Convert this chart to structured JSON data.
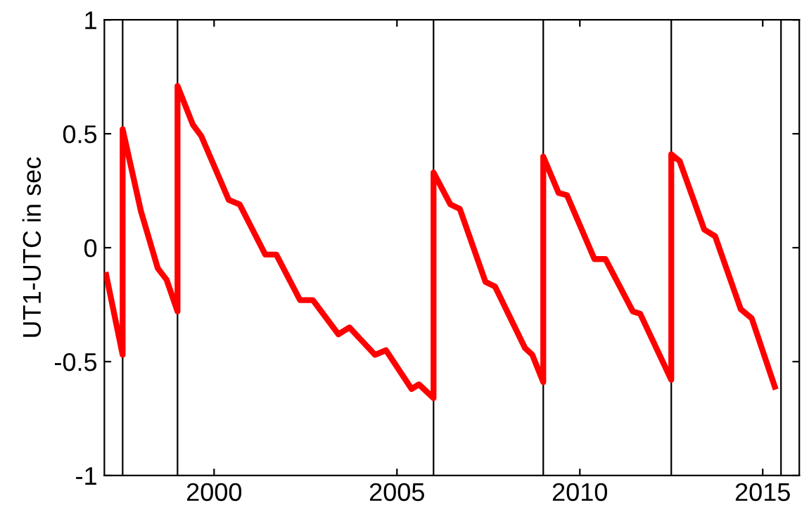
{
  "chart_data": {
    "type": "line",
    "ylabel": "UT1-UTC in sec",
    "series": [
      {
        "color": "#ff0000",
        "x": [
          1997.05,
          1997.5,
          1997.5,
          1998.0,
          1998.46,
          1998.7,
          1999.0,
          1999.0,
          1999.42,
          1999.65,
          2000.4,
          2000.7,
          2001.4,
          2001.7,
          2002.35,
          2002.7,
          2003.4,
          2003.7,
          2004.4,
          2004.7,
          2005.4,
          2005.6,
          2006.0,
          2006.0,
          2006.46,
          2006.72,
          2007.42,
          2007.68,
          2008.5,
          2008.7,
          2009.0,
          2009.0,
          2009.42,
          2009.65,
          2010.4,
          2010.7,
          2011.45,
          2011.65,
          2012.5,
          2012.5,
          2012.73,
          2013.4,
          2013.7,
          2014.4,
          2014.7,
          2015.33
        ],
        "values": [
          -0.12,
          -0.47,
          0.52,
          0.16,
          -0.09,
          -0.14,
          -0.28,
          0.71,
          0.54,
          0.49,
          0.21,
          0.19,
          -0.03,
          -0.03,
          -0.23,
          -0.23,
          -0.38,
          -0.35,
          -0.47,
          -0.45,
          -0.62,
          -0.6,
          -0.66,
          0.33,
          0.19,
          0.17,
          -0.15,
          -0.17,
          -0.44,
          -0.47,
          -0.59,
          0.4,
          0.24,
          0.23,
          -0.05,
          -0.05,
          -0.28,
          -0.29,
          -0.58,
          0.41,
          0.38,
          0.08,
          0.05,
          -0.27,
          -0.31,
          -0.61
        ]
      }
    ],
    "ref_lines": [
      {
        "axis": "x",
        "value": 1997.5,
        "color": "#000000"
      },
      {
        "axis": "x",
        "value": 1999.0,
        "color": "#000000"
      },
      {
        "axis": "x",
        "value": 2006.0,
        "color": "#000000"
      },
      {
        "axis": "x",
        "value": 2009.0,
        "color": "#000000"
      },
      {
        "axis": "x",
        "value": 2012.5,
        "color": "#000000"
      },
      {
        "axis": "x",
        "value": 2015.5,
        "color": "#000000"
      }
    ],
    "xlim": [
      1997,
      2016
    ],
    "xticks": [
      2000,
      2005,
      2010,
      2015
    ],
    "ylim": [
      -1,
      1
    ],
    "yticks": [
      -1,
      -0.5,
      0,
      0.5,
      1
    ],
    "grid": false,
    "legend": false,
    "line_style": "solid"
  }
}
